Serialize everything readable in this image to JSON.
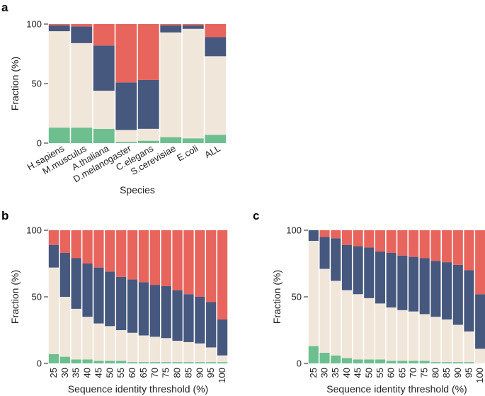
{
  "colors": {
    "green": "#6dbf90",
    "beige": "#f1e6da",
    "blue": "#46587e",
    "red": "#e8655e"
  },
  "chart_data": [
    {
      "panel": "a",
      "type": "bar",
      "stacked": true,
      "xlabel": "Species",
      "ylabel": "Fraction (%)",
      "ylim": [
        0,
        100
      ],
      "yticks": [
        "0",
        "50",
        "100"
      ],
      "categories": [
        "H.sapiens",
        "M.musculus",
        "A.thaliana",
        "D.melanogaster",
        "C.elegans",
        "S.cerevisiae",
        "E.coli",
        "ALL"
      ],
      "series": [
        {
          "name": "green",
          "values": [
            13,
            13,
            12,
            1,
            2,
            5,
            4,
            7
          ]
        },
        {
          "name": "beige",
          "values": [
            81,
            71,
            32,
            10,
            10,
            88,
            92,
            66
          ]
        },
        {
          "name": "blue",
          "values": [
            5,
            14,
            38,
            40,
            41,
            6,
            3,
            16
          ]
        },
        {
          "name": "red",
          "values": [
            1,
            2,
            18,
            49,
            47,
            1,
            1,
            11
          ]
        }
      ]
    },
    {
      "panel": "b",
      "type": "bar",
      "stacked": true,
      "xlabel": "Sequence identity threshold (%)",
      "ylabel": "Fraction (%)",
      "ylim": [
        0,
        100
      ],
      "yticks": [
        "0",
        "50",
        "100"
      ],
      "categories": [
        "25",
        "30",
        "35",
        "40",
        "45",
        "50",
        "55",
        "60",
        "65",
        "70",
        "75",
        "80",
        "85",
        "90",
        "95",
        "100"
      ],
      "series": [
        {
          "name": "green",
          "values": [
            7,
            5,
            3,
            3,
            2,
            2,
            2,
            1,
            1,
            1,
            1,
            1,
            1,
            1,
            1,
            1
          ]
        },
        {
          "name": "beige",
          "values": [
            65,
            45,
            38,
            32,
            28,
            26,
            23,
            22,
            20,
            19,
            18,
            16,
            15,
            14,
            11,
            5
          ]
        },
        {
          "name": "blue",
          "values": [
            17,
            33,
            38,
            40,
            42,
            41,
            40,
            40,
            40,
            39,
            39,
            38,
            36,
            35,
            34,
            27
          ]
        },
        {
          "name": "red",
          "values": [
            11,
            17,
            21,
            25,
            28,
            31,
            35,
            37,
            39,
            41,
            42,
            45,
            48,
            50,
            54,
            67
          ]
        }
      ]
    },
    {
      "panel": "c",
      "type": "bar",
      "stacked": true,
      "xlabel": "Sequence identity threshold (%)",
      "ylabel": "Fraction (%)",
      "ylim": [
        0,
        100
      ],
      "yticks": [
        "0",
        "50",
        "100"
      ],
      "categories": [
        "25",
        "30",
        "35",
        "40",
        "45",
        "50",
        "55",
        "60",
        "65",
        "70",
        "75",
        "80",
        "85",
        "90",
        "95",
        "100"
      ],
      "series": [
        {
          "name": "green",
          "values": [
            13,
            8,
            6,
            4,
            3,
            3,
            3,
            2,
            2,
            2,
            2,
            1,
            1,
            1,
            1,
            0
          ]
        },
        {
          "name": "beige",
          "values": [
            79,
            63,
            56,
            51,
            49,
            46,
            42,
            40,
            38,
            37,
            35,
            34,
            32,
            28,
            23,
            11
          ]
        },
        {
          "name": "blue",
          "values": [
            8,
            24,
            32,
            34,
            36,
            38,
            39,
            41,
            41,
            41,
            42,
            42,
            43,
            45,
            46,
            41
          ]
        },
        {
          "name": "red",
          "values": [
            0,
            5,
            6,
            11,
            12,
            13,
            16,
            17,
            19,
            20,
            21,
            23,
            24,
            26,
            30,
            48
          ]
        }
      ]
    }
  ]
}
